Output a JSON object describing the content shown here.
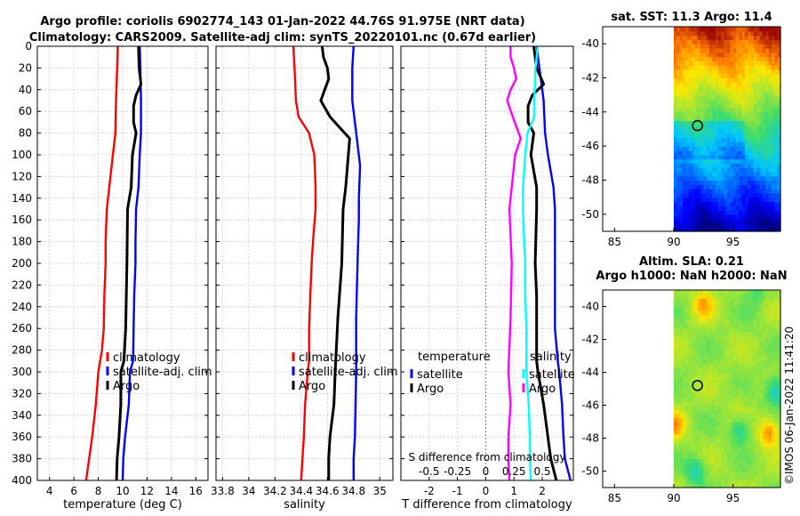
{
  "figure": {
    "title_line1": "Argo profile: coriolis 6902774_143 01-Jan-2022 44.76S 91.975E (NRT data)",
    "title_line2": "Climatology: CARS2009. Satellite-adj clim: synTS_20220101.nc (0.67d earlier)",
    "footer": "©IMOS 06-Jan-2022 11:41:20",
    "colors": {
      "red": "#ff0000",
      "blue": "#0000ff",
      "black": "#000000",
      "magenta": "#ff00ff",
      "cyan": "#00ffff"
    }
  },
  "chart_data": [
    {
      "type": "line",
      "id": "temperature",
      "xlabel": "temperature (deg C)",
      "ylabel": "",
      "xlim": [
        3,
        17
      ],
      "ylim": [
        400,
        0
      ],
      "xticks": [
        4,
        6,
        8,
        10,
        12,
        14,
        16
      ],
      "yticks": [
        0,
        20,
        40,
        60,
        80,
        100,
        120,
        140,
        160,
        180,
        200,
        220,
        240,
        260,
        280,
        300,
        320,
        340,
        360,
        380,
        400
      ],
      "grid": true,
      "legend": {
        "position": "right-middle",
        "entries": [
          "climatology",
          "satellite-adj. clim",
          "Argo"
        ]
      },
      "series": [
        {
          "name": "climatology",
          "color": "red",
          "points": [
            [
              9.6,
              0
            ],
            [
              9.55,
              20
            ],
            [
              9.45,
              50
            ],
            [
              9.4,
              80
            ],
            [
              9.2,
              100
            ],
            [
              8.9,
              130
            ],
            [
              8.7,
              150
            ],
            [
              8.6,
              180
            ],
            [
              8.6,
              200
            ],
            [
              8.5,
              230
            ],
            [
              8.45,
              260
            ],
            [
              8.3,
              280
            ],
            [
              8.0,
              300
            ],
            [
              7.8,
              330
            ],
            [
              7.5,
              360
            ],
            [
              7.25,
              380
            ],
            [
              7.0,
              400
            ]
          ]
        },
        {
          "name": "satellite-adj. clim",
          "color": "blue",
          "points": [
            [
              11.4,
              0
            ],
            [
              11.45,
              20
            ],
            [
              11.5,
              50
            ],
            [
              11.5,
              80
            ],
            [
              11.4,
              100
            ],
            [
              11.3,
              130
            ],
            [
              11.1,
              150
            ],
            [
              11.05,
              180
            ],
            [
              11.05,
              200
            ],
            [
              10.95,
              230
            ],
            [
              10.9,
              260
            ],
            [
              10.85,
              290
            ],
            [
              10.6,
              300
            ],
            [
              10.5,
              330
            ],
            [
              10.2,
              360
            ],
            [
              10.05,
              380
            ],
            [
              10.0,
              400
            ]
          ]
        },
        {
          "name": "Argo",
          "color": "black",
          "points": [
            [
              11.3,
              0
            ],
            [
              11.35,
              20
            ],
            [
              11.5,
              35
            ],
            [
              11.1,
              45
            ],
            [
              10.9,
              55
            ],
            [
              10.9,
              70
            ],
            [
              11.1,
              80
            ],
            [
              10.8,
              100
            ],
            [
              10.7,
              130
            ],
            [
              10.4,
              150
            ],
            [
              10.35,
              200
            ],
            [
              10.3,
              230
            ],
            [
              10.25,
              260
            ],
            [
              10.1,
              290
            ],
            [
              9.85,
              300
            ],
            [
              9.85,
              330
            ],
            [
              9.7,
              360
            ],
            [
              9.55,
              380
            ],
            [
              9.5,
              400
            ]
          ]
        }
      ]
    },
    {
      "type": "line",
      "id": "salinity",
      "xlabel": "salinity",
      "ylabel": "",
      "xlim": [
        33.75,
        35.1
      ],
      "ylim": [
        400,
        0
      ],
      "xticks": [
        33.8,
        34,
        34.2,
        34.4,
        34.6,
        34.8,
        35
      ],
      "xtick_labels": [
        "33.8",
        "34",
        "34.2",
        "34.4",
        "34.6",
        "34.8",
        "35"
      ],
      "grid": true,
      "legend": {
        "position": "right-middle",
        "entries": [
          "climatology",
          "satellite-adj. clim",
          "Argo"
        ]
      },
      "series": [
        {
          "name": "climatology",
          "color": "red",
          "points": [
            [
              34.34,
              0
            ],
            [
              34.35,
              20
            ],
            [
              34.36,
              50
            ],
            [
              34.38,
              65
            ],
            [
              34.46,
              80
            ],
            [
              34.5,
              100
            ],
            [
              34.51,
              130
            ],
            [
              34.51,
              150
            ],
            [
              34.49,
              180
            ],
            [
              34.48,
              200
            ],
            [
              34.47,
              230
            ],
            [
              34.46,
              260
            ],
            [
              34.46,
              290
            ],
            [
              34.45,
              300
            ],
            [
              34.43,
              330
            ],
            [
              34.42,
              360
            ],
            [
              34.41,
              380
            ],
            [
              34.4,
              400
            ]
          ]
        },
        {
          "name": "satellite-adj. clim",
          "color": "blue",
          "points": [
            [
              34.8,
              0
            ],
            [
              34.79,
              20
            ],
            [
              34.79,
              50
            ],
            [
              34.81,
              70
            ],
            [
              34.83,
              90
            ],
            [
              34.85,
              110
            ],
            [
              34.84,
              140
            ],
            [
              34.84,
              160
            ],
            [
              34.83,
              200
            ],
            [
              34.82,
              250
            ],
            [
              34.82,
              300
            ],
            [
              34.81,
              360
            ],
            [
              34.8,
              380
            ],
            [
              34.8,
              400
            ]
          ]
        },
        {
          "name": "Argo",
          "color": "black",
          "points": [
            [
              34.56,
              0
            ],
            [
              34.57,
              10
            ],
            [
              34.6,
              20
            ],
            [
              34.61,
              30
            ],
            [
              34.58,
              40
            ],
            [
              34.55,
              50
            ],
            [
              34.62,
              65
            ],
            [
              34.77,
              85
            ],
            [
              34.76,
              100
            ],
            [
              34.74,
              130
            ],
            [
              34.72,
              150
            ],
            [
              34.71,
              200
            ],
            [
              34.68,
              250
            ],
            [
              34.66,
              300
            ],
            [
              34.65,
              330
            ],
            [
              34.62,
              360
            ],
            [
              34.61,
              380
            ],
            [
              34.61,
              400
            ]
          ]
        }
      ]
    },
    {
      "type": "line",
      "id": "difference",
      "xlabel": "T difference from climatology",
      "xlabel_top": "S difference from climatology",
      "ylabel": "",
      "xlim": [
        -3,
        3.1
      ],
      "ylim": [
        400,
        0
      ],
      "xticks": [
        -2,
        -1,
        0,
        1,
        2
      ],
      "s_axis": {
        "xlim": [
          -0.75,
          0.775
        ],
        "ticks": [
          -0.5,
          -0.25,
          0,
          0.25,
          0.5
        ],
        "tick_labels": [
          "-0.5",
          "-0.25",
          "0",
          "0.25",
          "0.5"
        ]
      },
      "grid": true,
      "legend_temperature": {
        "title": "temperature",
        "entries": [
          "satellite",
          "Argo"
        ]
      },
      "legend_salinity": {
        "title": "salinity",
        "entries": [
          "satellite",
          "Argo"
        ]
      },
      "series": [
        {
          "name": "T satellite",
          "color": "blue",
          "axis": "T",
          "points": [
            [
              1.8,
              0
            ],
            [
              1.9,
              20
            ],
            [
              2.05,
              50
            ],
            [
              2.1,
              80
            ],
            [
              2.2,
              100
            ],
            [
              2.4,
              130
            ],
            [
              2.45,
              150
            ],
            [
              2.45,
              180
            ],
            [
              2.45,
              200
            ],
            [
              2.45,
              230
            ],
            [
              2.45,
              260
            ],
            [
              2.55,
              290
            ],
            [
              2.6,
              300
            ],
            [
              2.7,
              330
            ],
            [
              2.75,
              360
            ],
            [
              2.8,
              380
            ],
            [
              3.0,
              400
            ]
          ]
        },
        {
          "name": "T Argo",
          "color": "black",
          "axis": "T",
          "points": [
            [
              1.7,
              0
            ],
            [
              1.8,
              20
            ],
            [
              2.05,
              35
            ],
            [
              1.65,
              45
            ],
            [
              1.5,
              55
            ],
            [
              1.5,
              70
            ],
            [
              1.7,
              80
            ],
            [
              1.6,
              100
            ],
            [
              1.8,
              130
            ],
            [
              1.8,
              150
            ],
            [
              1.75,
              200
            ],
            [
              1.8,
              230
            ],
            [
              1.8,
              260
            ],
            [
              1.8,
              290
            ],
            [
              1.85,
              300
            ],
            [
              2.05,
              330
            ],
            [
              2.2,
              360
            ],
            [
              2.3,
              380
            ],
            [
              2.5,
              400
            ]
          ]
        },
        {
          "name": "S satellite",
          "color": "cyan",
          "axis": "S",
          "points": [
            [
              0.46,
              0
            ],
            [
              0.44,
              20
            ],
            [
              0.43,
              50
            ],
            [
              0.43,
              65
            ],
            [
              0.37,
              80
            ],
            [
              0.35,
              100
            ],
            [
              0.33,
              130
            ],
            [
              0.33,
              150
            ],
            [
              0.34,
              180
            ],
            [
              0.35,
              200
            ],
            [
              0.35,
              230
            ],
            [
              0.36,
              260
            ],
            [
              0.36,
              290
            ],
            [
              0.36,
              300
            ],
            [
              0.38,
              330
            ],
            [
              0.39,
              360
            ],
            [
              0.39,
              380
            ],
            [
              0.4,
              400
            ]
          ]
        },
        {
          "name": "S Argo",
          "color": "magenta",
          "axis": "S",
          "points": [
            [
              0.22,
              0
            ],
            [
              0.22,
              10
            ],
            [
              0.25,
              20
            ],
            [
              0.27,
              30
            ],
            [
              0.22,
              40
            ],
            [
              0.19,
              50
            ],
            [
              0.24,
              65
            ],
            [
              0.31,
              85
            ],
            [
              0.26,
              100
            ],
            [
              0.23,
              130
            ],
            [
              0.21,
              150
            ],
            [
              0.23,
              200
            ],
            [
              0.22,
              250
            ],
            [
              0.2,
              300
            ],
            [
              0.22,
              330
            ],
            [
              0.2,
              360
            ],
            [
              0.2,
              380
            ],
            [
              0.21,
              400
            ]
          ]
        }
      ]
    }
  ],
  "maps": [
    {
      "id": "sst-map",
      "title": "sat. SST: 11.3 Argo: 11.4",
      "xlim": [
        84,
        99
      ],
      "ylim": [
        -51,
        -39
      ],
      "xticks": [
        85,
        90,
        95
      ],
      "yticks": [
        -40,
        -42,
        -44,
        -46,
        -48,
        -50
      ],
      "marker": {
        "lon": 92,
        "lat": -44.8
      },
      "data_lon_range": [
        90,
        99
      ]
    },
    {
      "id": "sla-map",
      "title_line1": "Altim. SLA: 0.21",
      "title_line2": "Argo h1000: NaN h2000: NaN",
      "xlim": [
        84,
        99
      ],
      "ylim": [
        -51,
        -39
      ],
      "xticks": [
        85,
        90,
        95
      ],
      "yticks": [
        -40,
        -42,
        -44,
        -46,
        -48,
        -50
      ],
      "marker": {
        "lon": 92,
        "lat": -44.8
      },
      "data_lon_range": [
        90,
        99
      ]
    }
  ]
}
